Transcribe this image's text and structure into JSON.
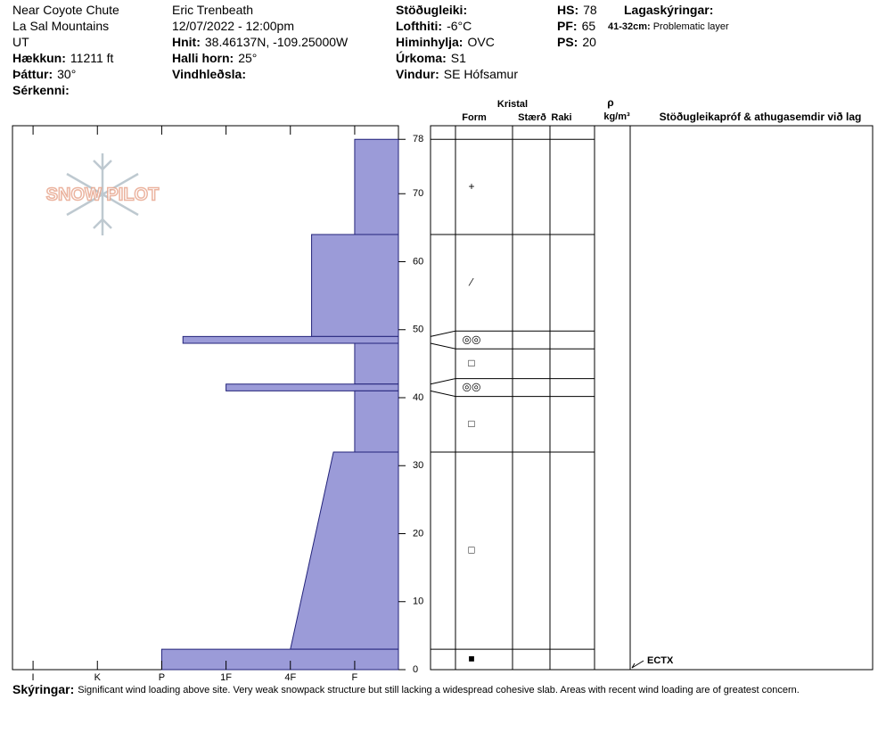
{
  "header": {
    "columns": [
      [
        {
          "text": "Near Coyote Chute"
        },
        {
          "text": "La Sal Mountains"
        },
        {
          "text": "UT"
        },
        {
          "label": "Hækkun:",
          "value": "11211 ft"
        },
        {
          "label": "Þáttur:",
          "value": "30°"
        },
        {
          "label": "Sérkenni:"
        }
      ],
      [
        {
          "text": "Eric Trenbeath"
        },
        {
          "text": "12/07/2022 - 12:00pm"
        },
        {
          "label": "Hnit:",
          "value": "38.46137N, -109.25000W"
        },
        {
          "label": "Halli horn:",
          "value": "25°"
        },
        {
          "label": "Vindhleðsla:"
        }
      ],
      [
        {
          "label": "Stöðugleiki:"
        },
        {
          "label": "Lofthiti:",
          "value": "-6°C"
        },
        {
          "label": "Himinhylja:",
          "value": "OVC"
        },
        {
          "label": "Úrkoma:",
          "value": "S1"
        },
        {
          "label": "Vindur:",
          "value": "SE Hófsamur"
        }
      ],
      [
        {
          "label": "HS:",
          "value": "78"
        },
        {
          "label": "PF:",
          "value": "65"
        },
        {
          "label": "PS:",
          "value": "20"
        }
      ],
      [
        {
          "label": "Lagaskýringar:"
        }
      ]
    ],
    "legend": {
      "label": "41-32cm:",
      "value": "Problematic layer"
    }
  },
  "logo": "SNOW PILOT",
  "chart_data": {
    "type": "hardness-profile",
    "ylim": [
      0,
      80
    ],
    "yticks": [
      0,
      10,
      20,
      30,
      40,
      50,
      60,
      70,
      78
    ],
    "xlim": [
      6.32,
      0.32
    ],
    "xticks": [
      {
        "value": 6,
        "label": "I"
      },
      {
        "value": 5,
        "label": "K"
      },
      {
        "value": 4,
        "label": "P"
      },
      {
        "value": 3,
        "label": "1F"
      },
      {
        "value": 2,
        "label": "4F"
      },
      {
        "value": 1,
        "label": "F"
      }
    ],
    "color": "#9b9bd8",
    "layers": [
      {
        "top": 78,
        "bottom": 64,
        "hardness_top": 1,
        "hardness_bottom": 1,
        "grain_form": "+"
      },
      {
        "top": 64,
        "bottom": 49,
        "hardness_top": 1.67,
        "hardness_bottom": 1.67,
        "grain_form": "⁄"
      },
      {
        "top": 49,
        "bottom": 48,
        "hardness_top": 3.67,
        "hardness_bottom": 3.67,
        "grain_form": "◎◎"
      },
      {
        "top": 48,
        "bottom": 42,
        "hardness_top": 1,
        "hardness_bottom": 1,
        "grain_form": "□"
      },
      {
        "top": 42,
        "bottom": 41,
        "hardness_top": 3,
        "hardness_bottom": 3,
        "grain_form": "◎◎"
      },
      {
        "top": 41,
        "bottom": 32,
        "hardness_top": 1,
        "hardness_bottom": 1,
        "grain_form": "□"
      },
      {
        "top": 32,
        "bottom": 3,
        "hardness_top": 1.33,
        "hardness_bottom": 2,
        "grain_form": "□"
      },
      {
        "top": 3,
        "bottom": 0,
        "hardness_top": 4,
        "hardness_bottom": 4,
        "grain_form": "■"
      }
    ],
    "columns": {
      "crystal": "Kristal",
      "form": "Form",
      "size": "Stærð",
      "moisture": "Raki",
      "density_symbol": "ρ",
      "density_unit": "kg/m³",
      "tests": "Stöðugleikapróf & athugasemdir við lag"
    },
    "stability_tests": [
      {
        "label": "ECTX",
        "height": 0
      }
    ]
  },
  "footer": {
    "label": "Skýringar:",
    "text": "Significant wind loading above site. Very weak snowpack structure but still lacking a widespread cohesive slab. Areas with recent wind loading are of greatest concern."
  }
}
